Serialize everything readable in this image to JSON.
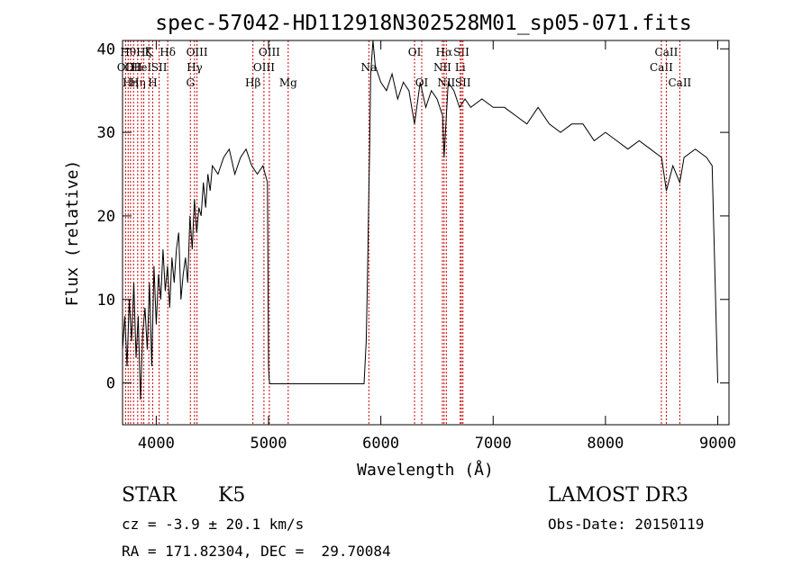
{
  "chart_data": {
    "type": "line",
    "title": "spec-57042-HD112918N302528M01_sp05-071.fits",
    "xlabel": "Wavelength (Å)",
    "ylabel": "Flux (relative)",
    "xlim": [
      3700,
      9100
    ],
    "ylim": [
      -5,
      41
    ],
    "x_ticks": [
      4000,
      5000,
      6000,
      7000,
      8000,
      9000
    ],
    "y_ticks": [
      0,
      10,
      20,
      30,
      40
    ],
    "grid": false,
    "legend": "none",
    "line_color": "#000000",
    "marker_color": "#cc0000",
    "series": [
      {
        "x": [
          3700,
          3720,
          3740,
          3760,
          3780,
          3800,
          3820,
          3840,
          3860,
          3880,
          3900,
          3920,
          3940,
          3960,
          3980,
          4000,
          4020,
          4040,
          4060,
          4080,
          4100,
          4120,
          4140,
          4160,
          4180,
          4200,
          4220,
          4240,
          4260,
          4280,
          4300,
          4320,
          4340,
          4360,
          4380,
          4400,
          4420,
          4440,
          4460,
          4480,
          4500,
          4550,
          4600,
          4650,
          4700,
          4750,
          4800,
          4850,
          4900,
          4950,
          4990,
          5000,
          5005,
          5010,
          5100,
          5200,
          5300,
          5400,
          5500,
          5600,
          5700,
          5800,
          5850,
          5870,
          5880,
          5890,
          5900,
          5910,
          5930,
          5950,
          6000,
          6050,
          6100,
          6150,
          6200,
          6250,
          6300,
          6350,
          6400,
          6450,
          6500,
          6550,
          6563,
          6600,
          6650,
          6700,
          6750,
          6800,
          6900,
          7000,
          7100,
          7200,
          7300,
          7400,
          7500,
          7600,
          7700,
          7800,
          7900,
          8000,
          8100,
          8200,
          8300,
          8400,
          8500,
          8542,
          8600,
          8662,
          8700,
          8800,
          8900,
          8950,
          9000
        ],
        "y": [
          4,
          8,
          2,
          10,
          5,
          12,
          3,
          8,
          -2,
          6,
          9,
          4,
          12,
          2,
          14,
          7,
          13,
          10,
          16,
          11,
          14,
          9,
          15,
          12,
          16,
          18,
          10,
          13,
          15,
          12,
          20,
          16,
          22,
          18,
          21,
          20,
          24,
          21,
          25,
          23,
          26,
          25,
          27,
          28,
          25,
          27,
          28,
          26,
          25,
          26,
          24,
          2,
          0.5,
          -0.1,
          -0.1,
          -0.1,
          -0.1,
          -0.1,
          -0.1,
          -0.1,
          -0.1,
          -0.1,
          -0.1,
          5,
          12,
          20,
          28,
          37,
          41,
          38,
          36,
          35,
          37,
          34,
          36,
          35,
          31,
          36,
          33,
          35,
          34,
          32,
          27,
          36,
          35,
          33,
          34,
          33,
          34,
          33,
          33,
          32,
          31,
          33,
          31,
          30,
          31,
          31,
          29,
          30,
          29,
          28,
          29,
          28,
          27,
          23,
          26,
          24,
          27,
          28,
          27,
          26,
          0
        ]
      }
    ],
    "lines": [
      {
        "x": 3727,
        "label": "OII",
        "row": 2
      },
      {
        "x": 3750,
        "label": "Hθ",
        "row": 1
      },
      {
        "x": 3771,
        "label": "Hη",
        "row": 3
      },
      {
        "x": 3798,
        "label": "OII",
        "row": 2
      },
      {
        "x": 3835,
        "label": "Hη",
        "row": 3
      },
      {
        "x": 3869,
        "label": "HeI",
        "row": 2
      },
      {
        "x": 3889,
        "label": "Hζ",
        "row": 1
      },
      {
        "x": 3934,
        "label": "K",
        "row": 1
      },
      {
        "x": 3969,
        "label": "H",
        "row": 3
      },
      {
        "x": 4026,
        "label": "SII",
        "row": 2
      },
      {
        "x": 4102,
        "label": "Hδ",
        "row": 1
      },
      {
        "x": 4304,
        "label": "G",
        "row": 3
      },
      {
        "x": 4341,
        "label": "Hγ",
        "row": 2
      },
      {
        "x": 4363,
        "label": "OIII",
        "row": 1
      },
      {
        "x": 4861,
        "label": "Hβ",
        "row": 3
      },
      {
        "x": 4959,
        "label": "OIII",
        "row": 2
      },
      {
        "x": 5007,
        "label": "OIII",
        "row": 1
      },
      {
        "x": 5175,
        "label": "Mg",
        "row": 3
      },
      {
        "x": 5893,
        "label": "Na",
        "row": 2
      },
      {
        "x": 6300,
        "label": "OI",
        "row": 1
      },
      {
        "x": 6364,
        "label": "OI",
        "row": 3
      },
      {
        "x": 6548,
        "label": "NII",
        "row": 2
      },
      {
        "x": 6563,
        "label": "Hα",
        "row": 1
      },
      {
        "x": 6583,
        "label": "NII",
        "row": 3
      },
      {
        "x": 6707,
        "label": "Li",
        "row": 2
      },
      {
        "x": 6717,
        "label": "SII",
        "row": 1
      },
      {
        "x": 6731,
        "label": "SII",
        "row": 3
      },
      {
        "x": 8498,
        "label": "CaII",
        "row": 2
      },
      {
        "x": 8542,
        "label": "CaII",
        "row": 1
      },
      {
        "x": 8662,
        "label": "CaII",
        "row": 3
      }
    ]
  },
  "info": {
    "class_label": "STAR",
    "subclass": "K5",
    "survey": "LAMOST DR3",
    "cz": "cz = -3.9 ± 20.1 km/s",
    "obs_date": "Obs-Date: 20150119",
    "radec": "RA = 171.82304, DEC =  29.70084"
  }
}
